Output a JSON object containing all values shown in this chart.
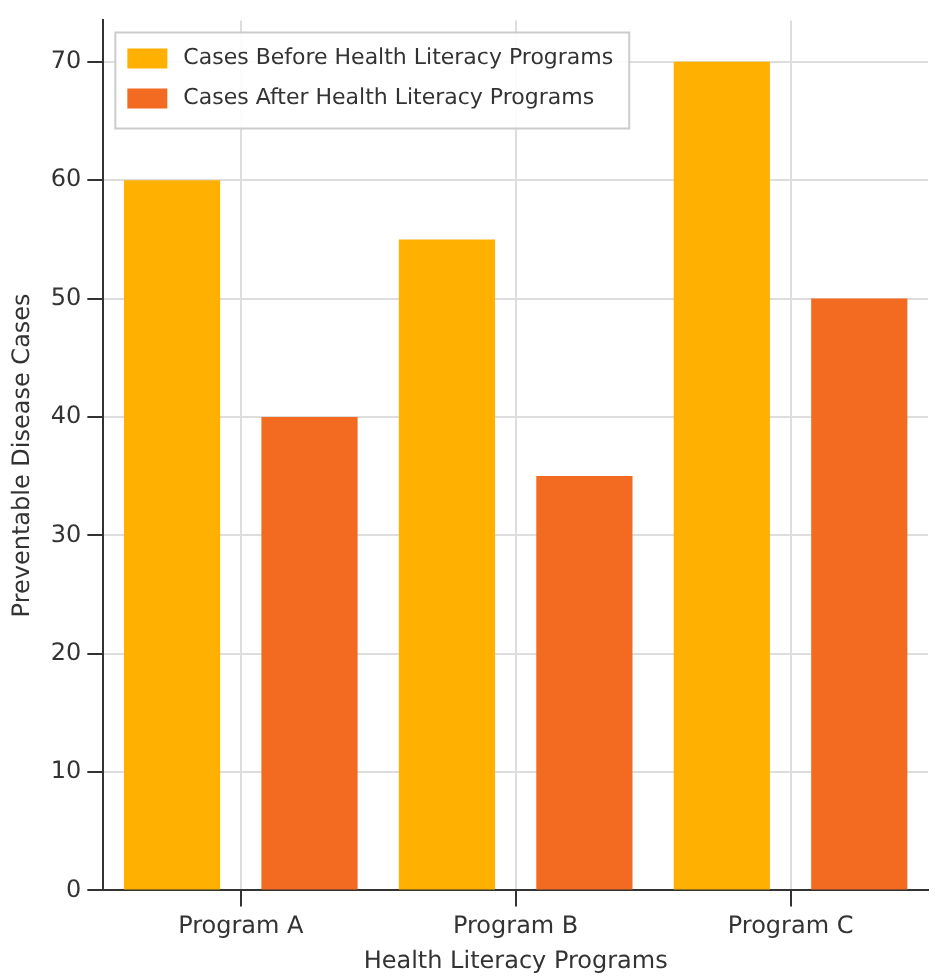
{
  "chart_data": {
    "type": "bar",
    "xlabel": "Health Literacy Programs",
    "ylabel": "Preventable Disease Cases",
    "categories": [
      "Program A",
      "Program B",
      "Program C"
    ],
    "series": [
      {
        "name": "Cases Before Health Literacy Programs",
        "color": "#ffb000",
        "values": [
          60,
          55,
          70
        ]
      },
      {
        "name": "Cases After Health Literacy Programs",
        "color": "#f26b21",
        "values": [
          40,
          35,
          50
        ]
      }
    ],
    "ylim": [
      0,
      73.5
    ],
    "yticks": [
      0,
      10,
      20,
      30,
      40,
      50,
      60,
      70
    ],
    "grid": true,
    "legend": "top left"
  }
}
